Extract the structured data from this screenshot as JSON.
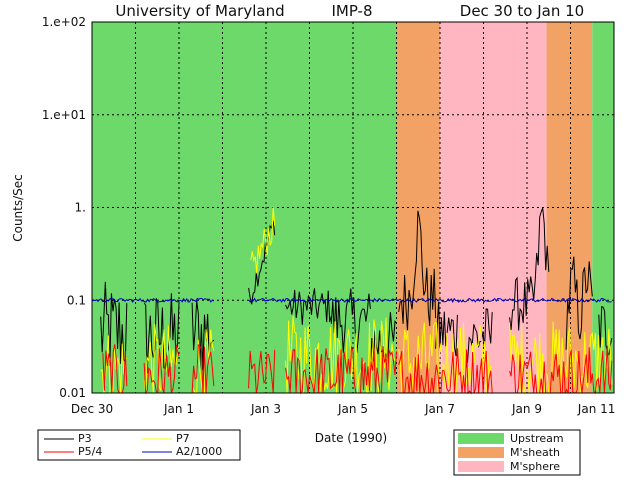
{
  "chart_data": {
    "type": "line",
    "title": {
      "institution": "University of Maryland",
      "spacecraft": "IMP-8",
      "period": "Dec 30 to Jan 10"
    },
    "xlabel": "Date (1990)",
    "ylabel": "Counts/Sec",
    "y_scale": "log",
    "ylim": [
      0.01,
      100
    ],
    "xlim_days": [
      0,
      12
    ],
    "y_ticks": [
      {
        "value": 100,
        "label": "1.e+02"
      },
      {
        "value": 10,
        "label": "1.e+01"
      },
      {
        "value": 1,
        "label": "1."
      },
      {
        "value": 0.1,
        "label": "0.1"
      },
      {
        "value": 0.01,
        "label": "0.01"
      }
    ],
    "x_ticks": [
      {
        "day": 0,
        "label": "Dec 30"
      },
      {
        "day": 2,
        "label": "Jan 1"
      },
      {
        "day": 4,
        "label": "Jan 3"
      },
      {
        "day": 6,
        "label": "Jan 5"
      },
      {
        "day": 8,
        "label": "Jan 7"
      },
      {
        "day": 10,
        "label": "Jan 9"
      },
      {
        "day": 11.6,
        "label": "Jan 11"
      }
    ],
    "grid_days": [
      0,
      1,
      2,
      3,
      4,
      5,
      6,
      7,
      8,
      9,
      10,
      11
    ],
    "grid_values": [
      100,
      10,
      1,
      0.1,
      0.01
    ],
    "regions": [
      {
        "name": "Upstream",
        "from": 0,
        "to": 7.0
      },
      {
        "name": "M'sheath",
        "from": 7.0,
        "to": 8.0
      },
      {
        "name": "M'sphere",
        "from": 8.0,
        "to": 10.45
      },
      {
        "name": "M'sheath",
        "from": 10.45,
        "to": 11.5
      },
      {
        "name": "Upstream",
        "from": 11.5,
        "to": 12
      }
    ],
    "region_colors": {
      "Upstream": "#6cd96a",
      "M'sheath": "#f2a264",
      "M'sphere": "#ffb6c1"
    },
    "series": [
      {
        "name": "P3",
        "color": "#000000",
        "segments": [
          {
            "from": 0.2,
            "to": 0.8,
            "level": 0.045,
            "spread": 0.55
          },
          {
            "from": 1.2,
            "to": 2.0,
            "level": 0.04,
            "spread": 0.5
          },
          {
            "from": 2.3,
            "to": 2.8,
            "level": 0.045,
            "spread": 0.5
          },
          {
            "from": 3.6,
            "to": 4.2,
            "level": 0.1,
            "spread": 0.15,
            "trend_to": 0.7
          },
          {
            "from": 4.45,
            "to": 5.5,
            "level": 0.085,
            "spread": 0.2
          },
          {
            "from": 5.5,
            "to": 6.4,
            "level": 0.06,
            "spread": 0.35
          },
          {
            "from": 6.4,
            "to": 7.0,
            "level": 0.035,
            "spread": 0.35
          },
          {
            "from": 7.05,
            "to": 7.9,
            "level": 0.1,
            "spread": 0.35
          },
          {
            "from": 7.9,
            "to": 8.4,
            "level": 0.045,
            "spread": 0.35
          },
          {
            "from": 8.6,
            "to": 9.2,
            "level": 0.04,
            "spread": 0.35
          },
          {
            "from": 9.6,
            "to": 10.5,
            "level": 0.09,
            "spread": 0.3
          },
          {
            "from": 10.9,
            "to": 11.5,
            "level": 0.05,
            "spread": 0.35
          },
          {
            "from": 11.65,
            "to": 11.95,
            "level": 0.05,
            "spread": 0.35
          }
        ],
        "peaks": [
          {
            "day": 7.5,
            "value": 0.6
          },
          {
            "day": 10.35,
            "value": 0.85
          },
          {
            "day": 11.38,
            "value": 0.18
          },
          {
            "day": 11.05,
            "value": 0.15
          }
        ]
      },
      {
        "name": "P5/4",
        "color": "#ff0000",
        "segments": [
          {
            "from": 0.25,
            "to": 0.8,
            "level": 0.015,
            "spread": 0.35
          },
          {
            "from": 1.2,
            "to": 2.0,
            "level": 0.015,
            "spread": 0.35
          },
          {
            "from": 2.3,
            "to": 2.8,
            "level": 0.015,
            "spread": 0.35
          },
          {
            "from": 3.6,
            "to": 4.2,
            "level": 0.015,
            "spread": 0.3
          },
          {
            "from": 4.45,
            "to": 7.0,
            "level": 0.015,
            "spread": 0.35
          },
          {
            "from": 7.05,
            "to": 9.2,
            "level": 0.015,
            "spread": 0.35
          },
          {
            "from": 9.6,
            "to": 11.95,
            "level": 0.015,
            "spread": 0.35
          }
        ],
        "peaks": []
      },
      {
        "name": "P7",
        "color": "#ffff00",
        "segments": [
          {
            "from": 0.2,
            "to": 0.8,
            "level": 0.018,
            "spread": 0.45
          },
          {
            "from": 1.2,
            "to": 2.0,
            "level": 0.02,
            "spread": 0.45
          },
          {
            "from": 2.3,
            "to": 2.8,
            "level": 0.018,
            "spread": 0.45
          },
          {
            "from": 3.65,
            "to": 4.2,
            "level": 0.2,
            "spread": 0.2,
            "trend_to": 0.7
          },
          {
            "from": 4.45,
            "to": 7.0,
            "level": 0.025,
            "spread": 0.45
          },
          {
            "from": 7.05,
            "to": 9.2,
            "level": 0.022,
            "spread": 0.45
          },
          {
            "from": 9.6,
            "to": 11.95,
            "level": 0.022,
            "spread": 0.45
          }
        ],
        "peaks": []
      },
      {
        "name": "A2/1000",
        "color": "#0000cc",
        "segments": [
          {
            "from": 0.0,
            "to": 2.8,
            "level": 0.1,
            "spread": 0.02
          },
          {
            "from": 3.6,
            "to": 11.95,
            "level": 0.1,
            "spread": 0.02
          }
        ],
        "peaks": []
      }
    ],
    "legend_series": [
      "P3",
      "P7",
      "P5/4",
      "A2/1000"
    ],
    "legend_regions": [
      "Upstream",
      "M'sheath",
      "M'sphere"
    ],
    "legend_placement": "below-left and below-right"
  }
}
